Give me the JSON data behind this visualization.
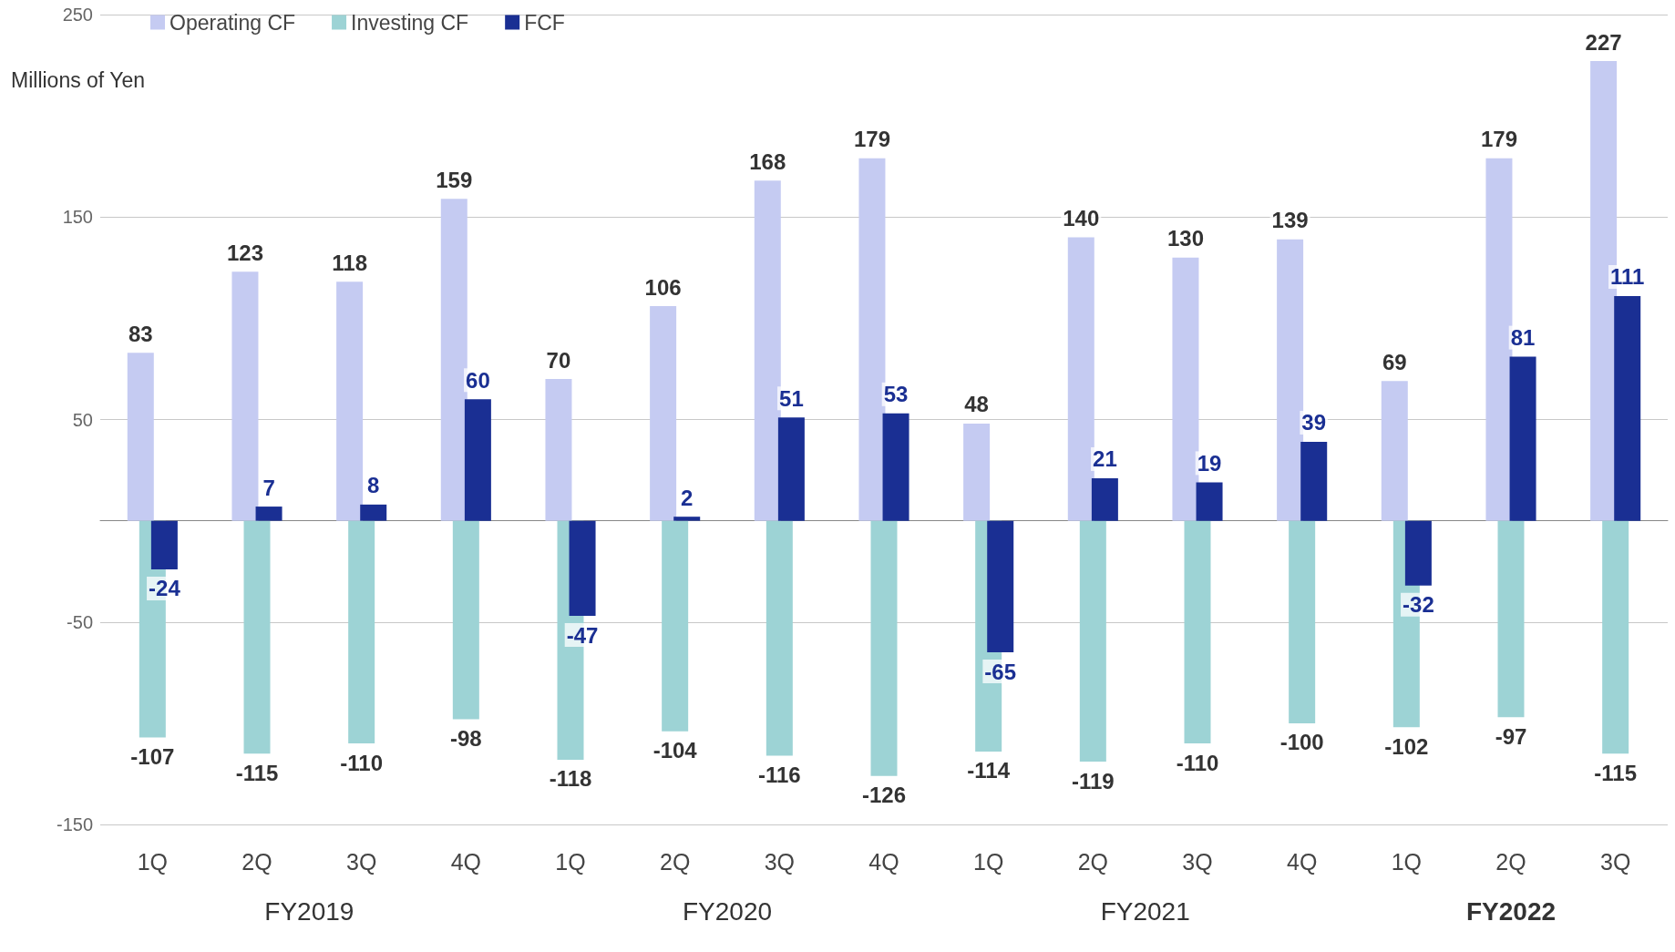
{
  "chart_data": {
    "type": "bar",
    "ylabel": "Millions of Yen",
    "categories": [
      "1Q",
      "2Q",
      "3Q",
      "4Q",
      "1Q",
      "2Q",
      "3Q",
      "4Q",
      "1Q",
      "2Q",
      "3Q",
      "4Q",
      "1Q",
      "2Q",
      "3Q"
    ],
    "series": [
      {
        "name": "Operating CF",
        "color": "#c5cbf2",
        "values": [
          83,
          123,
          118,
          159,
          70,
          106,
          168,
          179,
          48,
          140,
          130,
          139,
          69,
          179,
          227
        ]
      },
      {
        "name": "Investing CF",
        "color": "#9dd3d5",
        "values": [
          -107,
          -115,
          -110,
          -98,
          -118,
          -104,
          -116,
          -126,
          -114,
          -119,
          -110,
          -100,
          -102,
          -97,
          -115
        ]
      },
      {
        "name": "FCF",
        "color": "#1a2f93",
        "values": [
          -24,
          7,
          8,
          60,
          -47,
          2,
          51,
          53,
          -65,
          21,
          19,
          39,
          -32,
          81,
          111
        ]
      }
    ],
    "annotations": [
      "FY2019",
      "FY2020",
      "FY2021",
      "FY2022"
    ],
    "ylim": [
      -150,
      250
    ],
    "yticks": [
      -150,
      -50,
      50,
      150,
      250
    ],
    "grid": "y",
    "legend": "top left",
    "data_labels": true
  }
}
